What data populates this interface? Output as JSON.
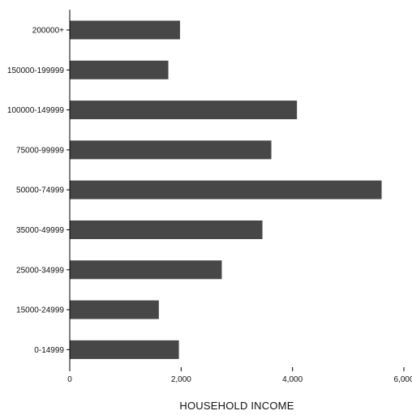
{
  "chart_data": {
    "type": "bar",
    "orientation": "horizontal",
    "categories": [
      "200000+",
      "150000-199999",
      "100000-149999",
      "75000-99999",
      "50000-74999",
      "35000-49999",
      "25000-34999",
      "15000-24999",
      "0-14999"
    ],
    "values": [
      1980,
      1770,
      4080,
      3620,
      5600,
      3460,
      2730,
      1600,
      1960
    ],
    "xlabel": "HOUSEHOLD INCOME",
    "xlim": [
      0,
      6000
    ],
    "xticks": [
      "0",
      "2,000",
      "4,000",
      "6,000"
    ],
    "xtick_values": [
      0,
      2000,
      4000,
      6000
    ],
    "grid": false,
    "colors": {
      "bar": "#474747",
      "axis": "#000000",
      "text": "#111111"
    }
  }
}
